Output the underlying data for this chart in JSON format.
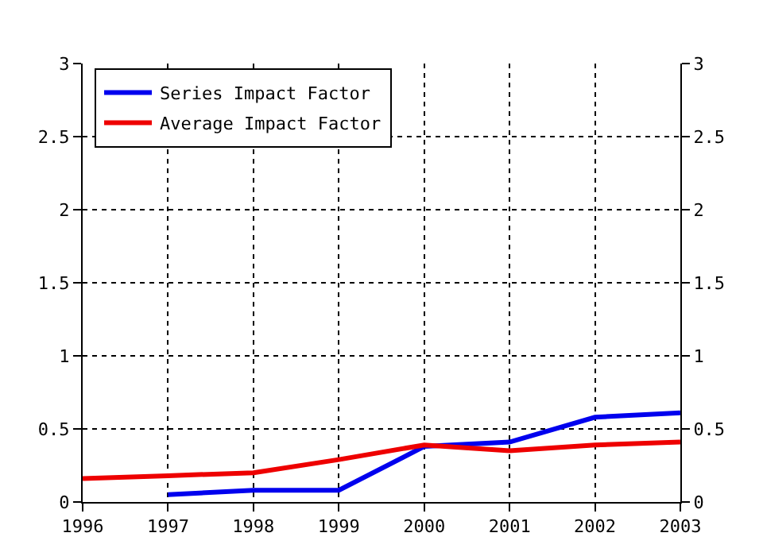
{
  "chart_data": {
    "type": "line",
    "x": [
      1996,
      1997,
      1998,
      1999,
      2000,
      2001,
      2002,
      2003
    ],
    "series": [
      {
        "name": "Series Impact Factor",
        "color": "#0000ee",
        "values": [
          null,
          0.05,
          0.08,
          0.08,
          0.38,
          0.41,
          0.58,
          0.61
        ]
      },
      {
        "name": "Average Impact Factor",
        "color": "#ee0000",
        "values": [
          0.16,
          0.18,
          0.2,
          0.29,
          0.39,
          0.35,
          0.39,
          0.41
        ]
      }
    ],
    "xlim": [
      1996,
      2003
    ],
    "xticks": [
      1996,
      1997,
      1998,
      1999,
      2000,
      2001,
      2002,
      2003
    ],
    "ylim": [
      0,
      3
    ],
    "yticks": [
      0,
      0.5,
      1,
      1.5,
      2,
      2.5,
      3
    ],
    "y2lim": [
      0,
      3
    ],
    "y2ticks": [
      0,
      0.5,
      1,
      1.5,
      2,
      2.5,
      3
    ],
    "grid": true,
    "legend": "top left",
    "line_style": "solid",
    "marker": "none"
  }
}
